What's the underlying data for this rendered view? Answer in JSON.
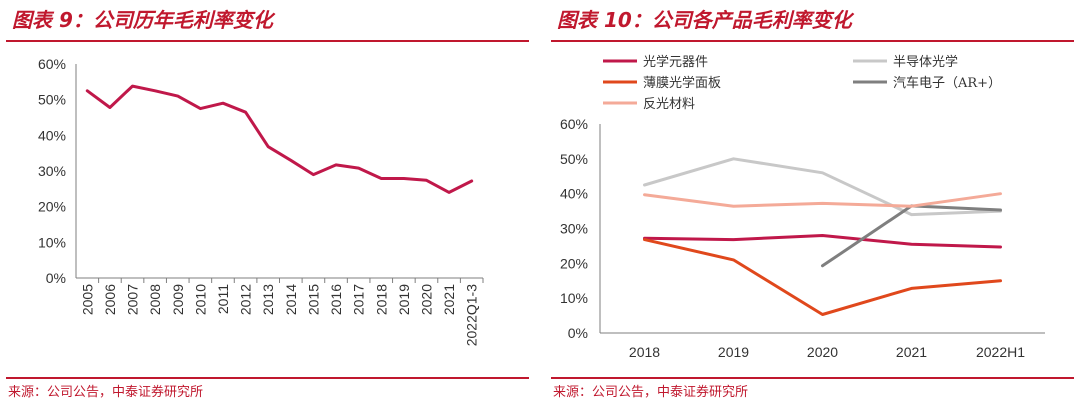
{
  "colors": {
    "accent": "#c0182e"
  },
  "chart_data": [
    {
      "type": "line",
      "title": "图表 9：公司历年毛利率变化",
      "source": "来源：公司公告，中泰证券研究所",
      "categories": [
        "2005",
        "2006",
        "2007",
        "2008",
        "2009",
        "2010",
        "2011",
        "2012",
        "2013",
        "2014",
        "2015",
        "2016",
        "2017",
        "2018",
        "2019",
        "2020",
        "2021",
        "2022Q1-3"
      ],
      "series": [
        {
          "name": "毛利率",
          "color": "#c0184a",
          "values": [
            52.5,
            47.8,
            53.8,
            52.5,
            51.0,
            47.5,
            49.0,
            46.5,
            36.8,
            33.0,
            29.0,
            31.7,
            30.8,
            27.9,
            27.9,
            27.4,
            24.0,
            27.2
          ]
        }
      ],
      "yticks": [
        "0%",
        "10%",
        "20%",
        "30%",
        "40%",
        "50%",
        "60%"
      ],
      "ylim": [
        0,
        60
      ],
      "xlabel": "",
      "ylabel": ""
    },
    {
      "type": "line",
      "title": "图表 10：公司各产品毛利率变化",
      "source": "来源：公司公告，中泰证券研究所",
      "categories": [
        "2018",
        "2019",
        "2020",
        "2021",
        "2022H1"
      ],
      "series": [
        {
          "name": "光学元器件",
          "color": "#c0184a",
          "values": [
            27.2,
            26.8,
            28.0,
            25.5,
            24.7
          ]
        },
        {
          "name": "半导体光学",
          "color": "#c8c8c8",
          "values": [
            42.5,
            50.0,
            46.0,
            34.0,
            35.0
          ]
        },
        {
          "name": "薄膜光学面板",
          "color": "#e0481c",
          "values": [
            26.8,
            21.0,
            5.3,
            12.8,
            15.0
          ]
        },
        {
          "name": "汽车电子（AR+）",
          "color": "#7f7f7f",
          "values": [
            null,
            null,
            19.3,
            36.5,
            35.3
          ]
        },
        {
          "name": "反光材料",
          "color": "#f4aa98",
          "values": [
            39.7,
            36.4,
            37.2,
            36.4,
            40.0
          ]
        }
      ],
      "yticks": [
        "0%",
        "10%",
        "20%",
        "30%",
        "40%",
        "50%",
        "60%"
      ],
      "ylim": [
        0,
        60
      ],
      "xlabel": "",
      "ylabel": ""
    }
  ]
}
